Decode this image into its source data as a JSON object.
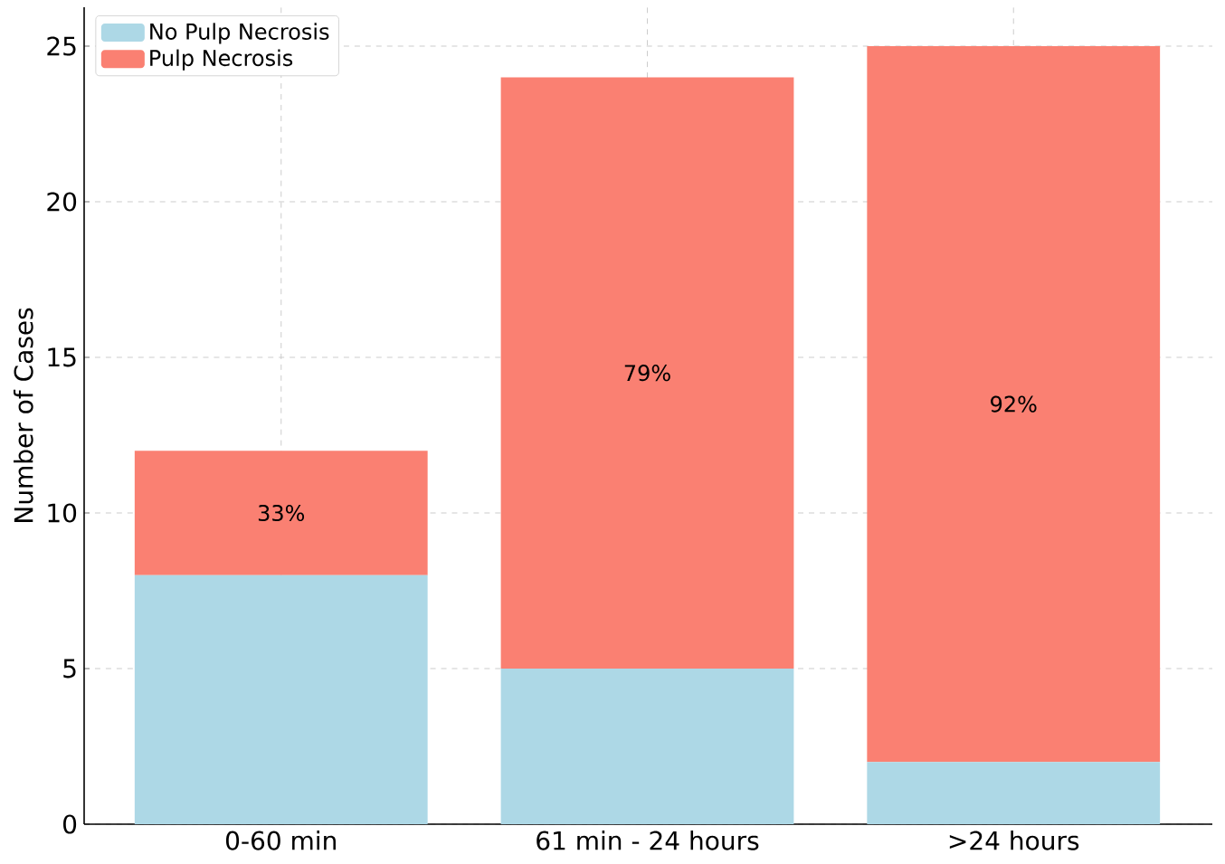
{
  "chart_data": {
    "type": "bar",
    "stacked": true,
    "ylabel": "Number of Cases",
    "categories": [
      "0-60 min",
      "61 min - 24 hours",
      ">24 hours"
    ],
    "series": [
      {
        "name": "No Pulp Necrosis",
        "color": "#add8e6",
        "values": [
          8,
          5,
          2
        ]
      },
      {
        "name": "Pulp Necrosis",
        "color": "#fa8072",
        "values": [
          4,
          19,
          23
        ]
      }
    ],
    "annotations": [
      "33%",
      "79%",
      "92%"
    ],
    "ylim": [
      0,
      26.25
    ],
    "yticks": [
      0,
      5,
      10,
      15,
      20,
      25
    ],
    "grid": true,
    "legend": "top left"
  }
}
